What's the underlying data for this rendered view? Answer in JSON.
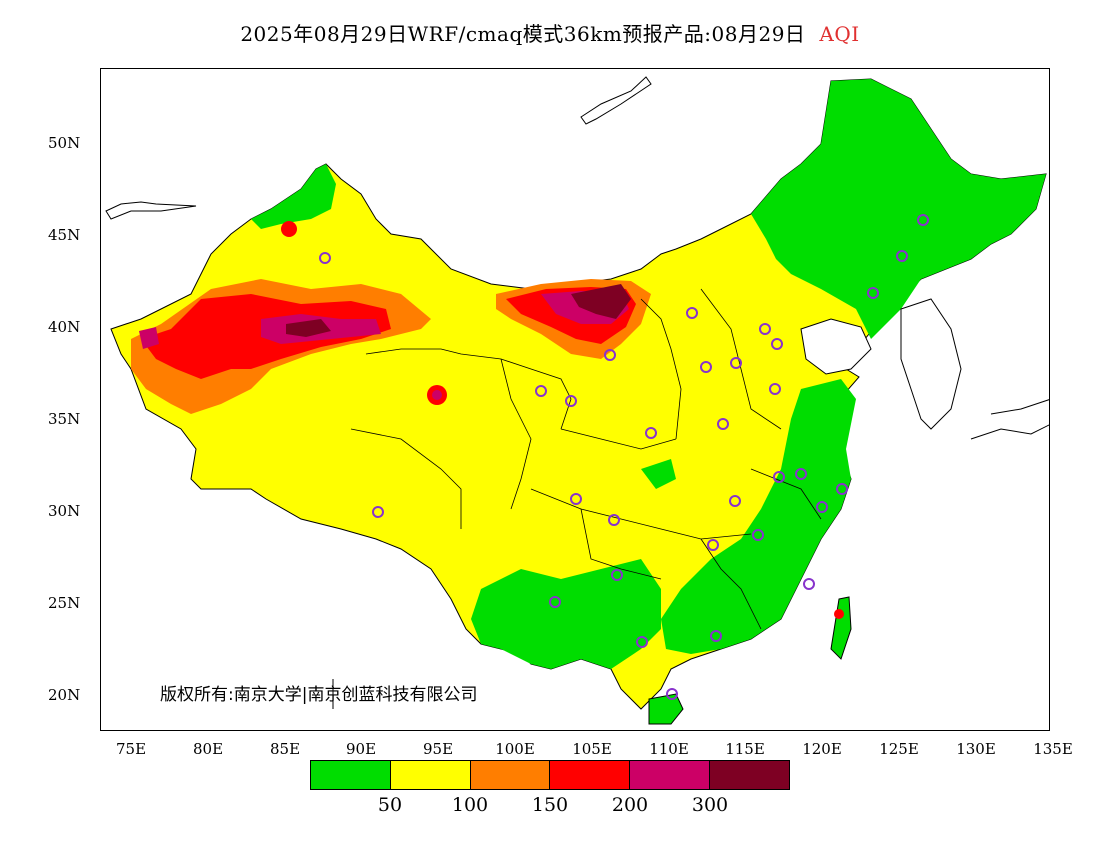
{
  "title": {
    "text": "2025年08月29日WRF/cmaq模式36km预报产品:08月29日",
    "variable": "AQI",
    "variable_color": "#e03030"
  },
  "axes": {
    "y_labels": [
      "50N",
      "45N",
      "40N",
      "35N",
      "30N",
      "25N",
      "20N"
    ],
    "x_labels": [
      "75E",
      "80E",
      "85E",
      "90E",
      "95E",
      "100E",
      "105E",
      "110E",
      "115E",
      "120E",
      "125E",
      "130E",
      "135E"
    ]
  },
  "copyright": "版权所有:南京大学|南京创蓝科技有限公司",
  "legend": {
    "colors": [
      "#00dd00",
      "#ffff00",
      "#ff7e00",
      "#ff0000",
      "#cc0066",
      "#7e0023"
    ],
    "ticks": [
      "50",
      "100",
      "150",
      "200",
      "300"
    ]
  }
}
